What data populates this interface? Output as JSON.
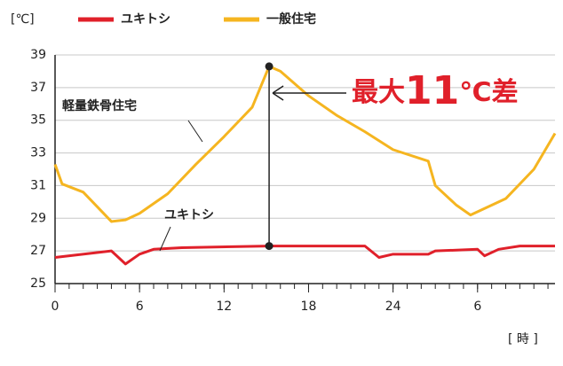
{
  "chart_data": {
    "type": "line",
    "y_unit_label": "[℃]",
    "x_unit_label": "[ 時 ]",
    "series": [
      {
        "name": "ユキトシ",
        "color": "#e0202a",
        "x": [
          0,
          4,
          5,
          6,
          7,
          9,
          15.2,
          22,
          23,
          24,
          26.5,
          27,
          30,
          30.5,
          31.5,
          33,
          35.5
        ],
        "values": [
          26.6,
          27.0,
          26.2,
          26.8,
          27.1,
          27.2,
          27.3,
          27.3,
          26.6,
          26.8,
          26.8,
          27.0,
          27.1,
          26.7,
          27.1,
          27.3,
          27.3
        ]
      },
      {
        "name": "一般住宅",
        "color": "#f5b520",
        "x": [
          0,
          0.5,
          2,
          4,
          5,
          6,
          8,
          10,
          12,
          14,
          15.2,
          16,
          18,
          20,
          22,
          24,
          26.5,
          27,
          28.5,
          29.5,
          32,
          34,
          35.5
        ],
        "values": [
          32.3,
          31.1,
          30.6,
          28.8,
          28.9,
          29.3,
          30.5,
          32.3,
          34.0,
          35.8,
          38.3,
          38.0,
          36.5,
          35.3,
          34.3,
          33.2,
          32.5,
          31.0,
          29.8,
          29.2,
          30.2,
          32.0,
          34.2
        ]
      }
    ],
    "xlim": [
      0,
      35.5
    ],
    "xticks": [
      0,
      6,
      12,
      18,
      24,
      {
        "value": 30,
        "label": "6"
      }
    ],
    "x_minor_step": 1,
    "ylim": [
      25,
      39
    ],
    "yticks": [
      25,
      27,
      29,
      31,
      33,
      35,
      37,
      39
    ],
    "grid": true,
    "annotations": {
      "series_labels": [
        "ユキトシ",
        "軽量鉄骨住宅"
      ],
      "difference": {
        "x": 15.2,
        "prefix": "最大",
        "number": "11",
        "suffix": "℃差",
        "color": "#e0202a"
      }
    }
  }
}
